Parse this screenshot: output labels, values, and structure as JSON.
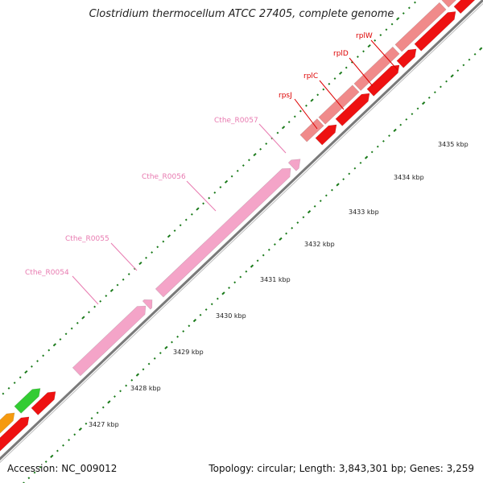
{
  "title": "Clostridium thermocellum ATCC 27405, complete genome",
  "footer": {
    "accession": "Accession: NC_009012",
    "topology": "Topology: circular; Length: 3,843,301 bp; Genes: 3,259"
  },
  "colors": {
    "backbone": "#7a7a7a",
    "tick": "#1a7a1a",
    "rna": "#f4a4c8",
    "rna_label": "#e87ab0",
    "ribosomal_light": "#f08a8a",
    "ribosomal_dark": "#ee1111",
    "ribosomal_label": "#dd0000",
    "green_gene": "#33cc33",
    "orange_gene": "#f59a10"
  },
  "ruler": {
    "unit": "kbp",
    "ticks": [
      {
        "label": "3427 kbp"
      },
      {
        "label": "3428 kbp"
      },
      {
        "label": "3429 kbp"
      },
      {
        "label": "3430 kbp"
      },
      {
        "label": "3431 kbp"
      },
      {
        "label": "3432 kbp"
      },
      {
        "label": "3433 kbp"
      },
      {
        "label": "3434 kbp"
      },
      {
        "label": "3435 kbp"
      }
    ]
  },
  "gene_labels": [
    {
      "name": "Cthe_R0054",
      "kind": "rna"
    },
    {
      "name": "Cthe_R0055",
      "kind": "rna"
    },
    {
      "name": "Cthe_R0056",
      "kind": "rna"
    },
    {
      "name": "Cthe_R0057",
      "kind": "rna"
    },
    {
      "name": "rpsJ",
      "kind": "ribosomal"
    },
    {
      "name": "rplC",
      "kind": "ribosomal"
    },
    {
      "name": "rplD",
      "kind": "ribosomal"
    },
    {
      "name": "rplW",
      "kind": "ribosomal"
    }
  ]
}
